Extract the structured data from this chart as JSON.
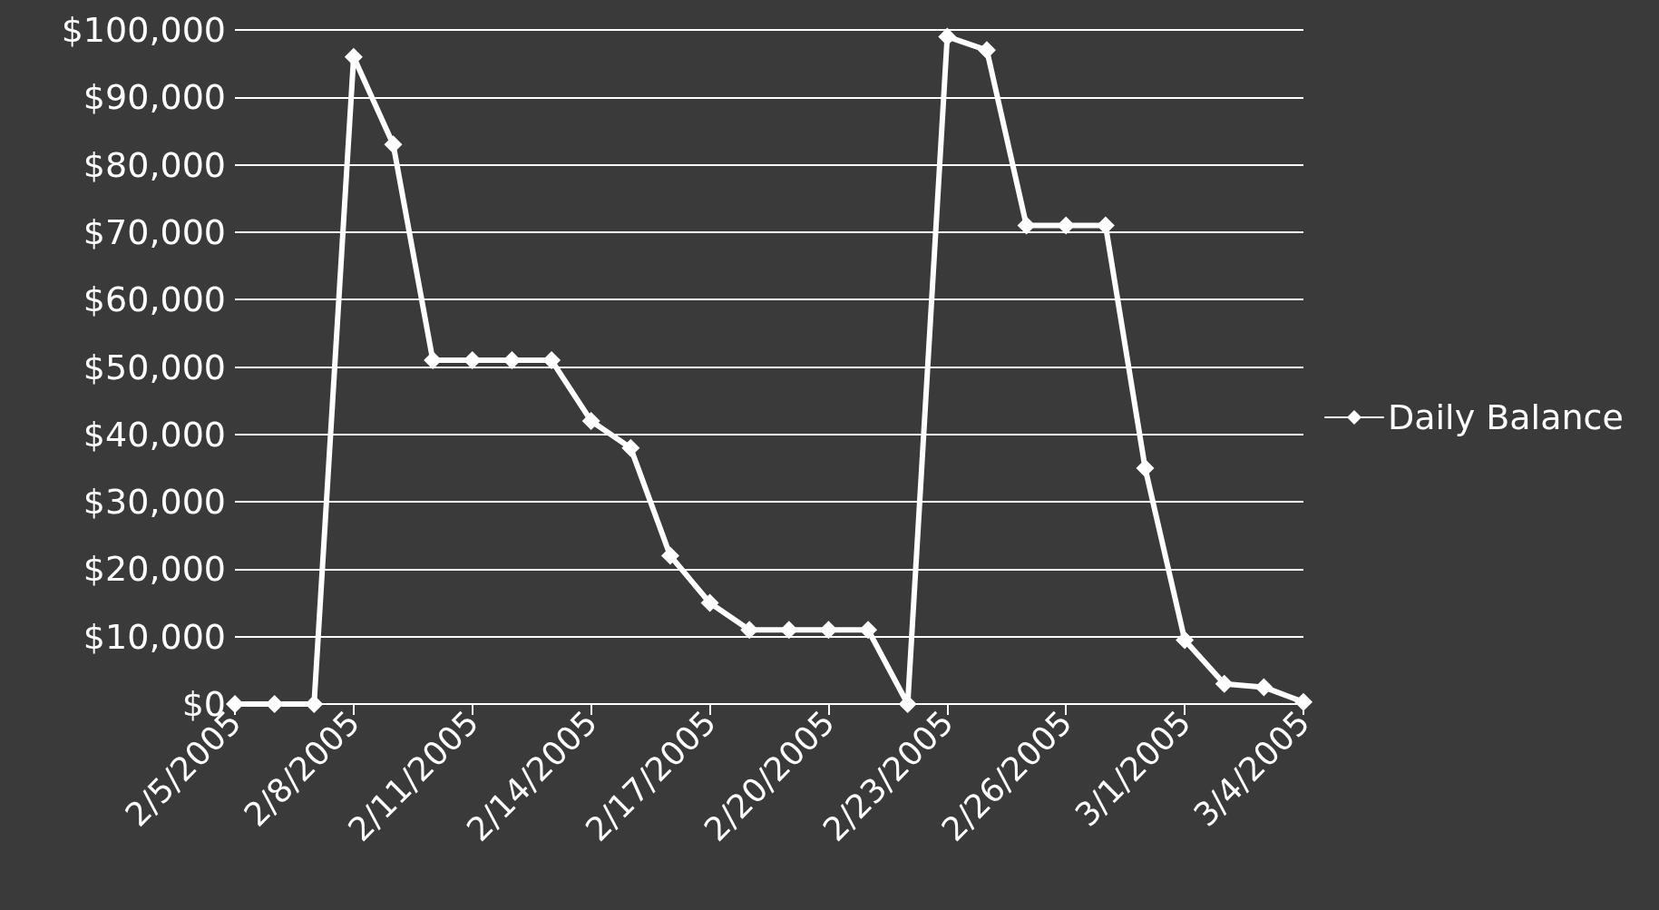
{
  "chart_data": {
    "type": "line",
    "categories": [
      "2/5/2005",
      null,
      null,
      "2/8/2005",
      null,
      null,
      "2/11/2005",
      null,
      null,
      "2/14/2005",
      null,
      null,
      "2/17/2005",
      null,
      null,
      "2/20/2005",
      null,
      null,
      "2/23/2005",
      null,
      null,
      "2/26/2005",
      null,
      null,
      "3/1/2005",
      null,
      null,
      "3/4/2005"
    ],
    "series": [
      {
        "name": "Daily Balance",
        "color": "#ffffff",
        "values": [
          0,
          0,
          0,
          96000,
          83000,
          51000,
          51000,
          51000,
          51000,
          42000,
          38000,
          22000,
          15000,
          11000,
          11000,
          11000,
          11000,
          0,
          99000,
          97000,
          71000,
          71000,
          71000,
          35000,
          9500,
          3000,
          2500,
          300
        ]
      }
    ],
    "ylim": [
      0,
      100000
    ],
    "yticks": [
      {
        "value": 0,
        "label": "$0"
      },
      {
        "value": 10000,
        "label": "$10,000"
      },
      {
        "value": 20000,
        "label": "$20,000"
      },
      {
        "value": 30000,
        "label": "$30,000"
      },
      {
        "value": 40000,
        "label": "$40,000"
      },
      {
        "value": 50000,
        "label": "$50,000"
      },
      {
        "value": 60000,
        "label": "$60,000"
      },
      {
        "value": 70000,
        "label": "$70,000"
      },
      {
        "value": 80000,
        "label": "$80,000"
      },
      {
        "value": 90000,
        "label": "$90,000"
      },
      {
        "value": 100000,
        "label": "$100,000"
      }
    ],
    "grid": "y",
    "legend": "right",
    "marker": "diamond",
    "line_style": "solid"
  }
}
